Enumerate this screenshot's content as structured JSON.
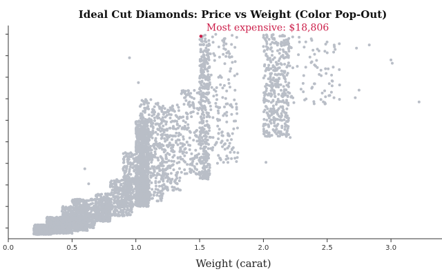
{
  "chart_data": {
    "type": "scatter",
    "title": "Ideal Cut Diamonds: Price vs Weight (Color Pop-Out)",
    "xlabel": "Weight (carat)",
    "ylabel": "",
    "xlim": [
      0,
      3.4
    ],
    "ylim": [
      0,
      19800
    ],
    "x_ticks": [
      0.0,
      0.5,
      1.0,
      1.5,
      2.0,
      2.5,
      3.0
    ],
    "x_tick_labels": [
      "0.0",
      "0.5",
      "1.0",
      "1.5",
      "2.0",
      "2.5",
      "3.0"
    ],
    "y_ticks": [
      1000,
      3000,
      5000,
      7000,
      9000,
      11000,
      13000,
      15000,
      17000,
      19000
    ],
    "grid": false,
    "point_color": "#b9bec7",
    "highlight_color": "#cc1f4a",
    "highlight": {
      "x": 1.51,
      "y": 18806
    },
    "annotation": {
      "text": "Most expensive: $18,806"
    },
    "clusters": [
      {
        "x": [
          0.2,
          0.34
        ],
        "y": [
          400,
          1300
        ],
        "n": 380
      },
      {
        "x": [
          0.3,
          0.5
        ],
        "y": [
          500,
          2000
        ],
        "n": 480
      },
      {
        "x": [
          0.42,
          0.62
        ],
        "y": [
          700,
          3000
        ],
        "n": 380
      },
      {
        "x": [
          0.5,
          0.68
        ],
        "y": [
          1000,
          3700
        ],
        "n": 300
      },
      {
        "x": [
          0.68,
          0.8
        ],
        "y": [
          1600,
          4200
        ],
        "n": 300
      },
      {
        "x": [
          0.8,
          0.97
        ],
        "y": [
          2100,
          5500
        ],
        "n": 300
      },
      {
        "x": [
          0.9,
          1.0
        ],
        "y": [
          3000,
          8000
        ],
        "n": 180
      },
      {
        "x": [
          1.0,
          1.1
        ],
        "y": [
          3000,
          11000
        ],
        "n": 700
      },
      {
        "x": [
          1.03,
          1.22
        ],
        "y": [
          3500,
          13000
        ],
        "n": 380
      },
      {
        "x": [
          1.2,
          1.35
        ],
        "y": [
          4500,
          12500
        ],
        "n": 200
      },
      {
        "x": [
          1.35,
          1.5
        ],
        "y": [
          6000,
          14000
        ],
        "n": 140
      },
      {
        "x": [
          1.5,
          1.58
        ],
        "y": [
          5500,
          19000
        ],
        "n": 350
      },
      {
        "x": [
          1.58,
          1.8
        ],
        "y": [
          7000,
          19000
        ],
        "n": 150
      },
      {
        "x": [
          2.0,
          2.2
        ],
        "y": [
          9500,
          19000
        ],
        "n": 380
      },
      {
        "x": [
          2.2,
          2.6
        ],
        "y": [
          12500,
          18900
        ],
        "n": 80
      }
    ],
    "outliers": [
      {
        "x": 0.63,
        "y": 5100
      },
      {
        "x": 0.6,
        "y": 6500
      },
      {
        "x": 0.95,
        "y": 16800
      },
      {
        "x": 1.02,
        "y": 14500
      },
      {
        "x": 2.02,
        "y": 7100
      },
      {
        "x": 2.18,
        "y": 9500
      },
      {
        "x": 2.21,
        "y": 9400
      },
      {
        "x": 2.72,
        "y": 13100
      },
      {
        "x": 2.75,
        "y": 13800
      },
      {
        "x": 3.0,
        "y": 16600
      },
      {
        "x": 3.01,
        "y": 16300
      },
      {
        "x": 3.22,
        "y": 12700
      },
      {
        "x": 2.73,
        "y": 17700
      },
      {
        "x": 2.83,
        "y": 18000
      }
    ]
  }
}
